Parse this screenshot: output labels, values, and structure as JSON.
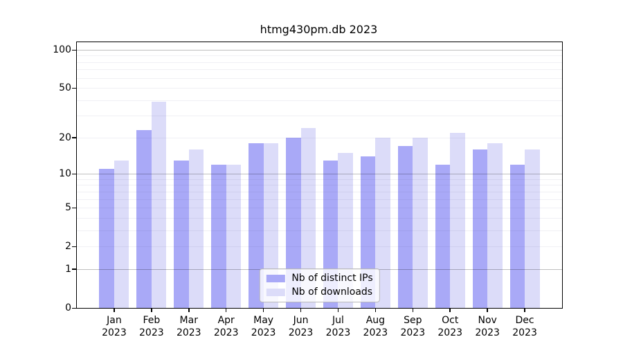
{
  "figure": {
    "background": "#ffffff",
    "plot_border_color": "#000000"
  },
  "chart_data": {
    "type": "bar",
    "title": "htmg430pm.db 2023",
    "categories": [
      "Jan",
      "Feb",
      "Mar",
      "Apr",
      "May",
      "Jun",
      "Jul",
      "Aug",
      "Sep",
      "Oct",
      "Nov",
      "Dec"
    ],
    "category_year": "2023",
    "series": [
      {
        "name": "Nb of distinct IPs",
        "color": "#a9a9f7",
        "values": [
          11,
          23,
          13,
          12,
          18,
          20,
          13,
          14,
          17,
          12,
          16,
          12
        ]
      },
      {
        "name": "Nb of downloads",
        "color": "#dcdcf9",
        "values": [
          13,
          39,
          16,
          12,
          18,
          24,
          15,
          20,
          20,
          22,
          18,
          16
        ]
      }
    ],
    "y_axis": {
      "scale": "log1p",
      "tick_values": [
        0,
        1,
        2,
        5,
        10,
        20,
        50,
        100
      ],
      "tick_labels": [
        "0",
        "1",
        "2",
        "5",
        "10",
        "20",
        "50",
        "100"
      ],
      "minor_grid_values": [
        2,
        3,
        4,
        5,
        6,
        7,
        8,
        9,
        20,
        30,
        40,
        50,
        60,
        70,
        80,
        90
      ],
      "major_grid_values": [
        1,
        10,
        100
      ],
      "axis_max": 115
    },
    "legend": {
      "position": "bottom-center"
    },
    "grid": true
  }
}
